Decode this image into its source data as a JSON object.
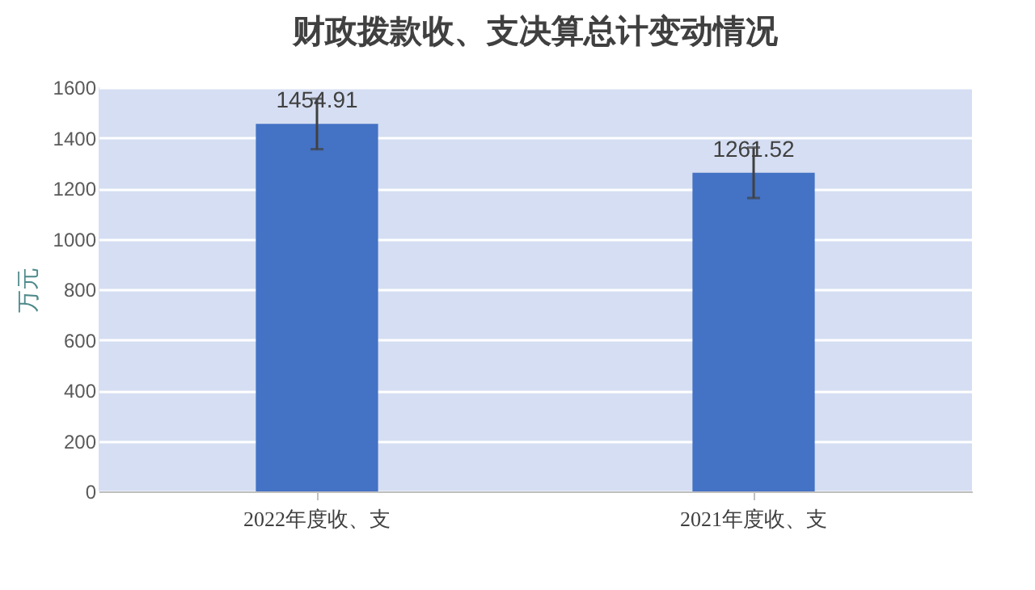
{
  "chart_data": {
    "type": "bar",
    "title": "财政拨款收、支决算总计变动情况",
    "ylabel": "万元",
    "categories": [
      "2022年度收、支",
      "2021年度收、支"
    ],
    "values": [
      1454.91,
      1261.52
    ],
    "color": "#4472c4",
    "errors": [
      100,
      100
    ],
    "ylim": [
      0,
      1600
    ],
    "yticks": [
      0,
      200,
      400,
      600,
      800,
      1000,
      1200,
      1400,
      1600
    ],
    "grid": "y",
    "data_labels": true
  }
}
